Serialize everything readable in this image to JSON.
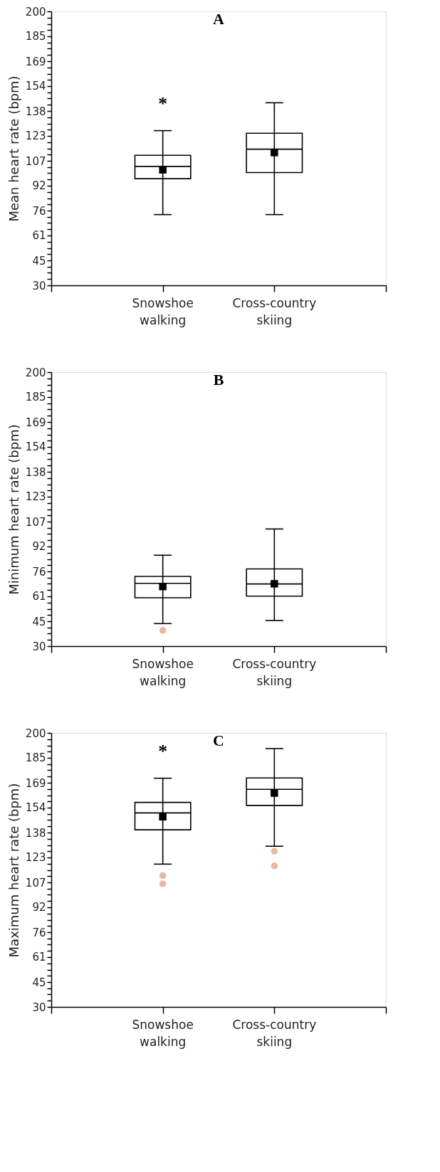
{
  "chart_data": [
    {
      "type": "box",
      "title": "A",
      "ylabel": "Mean heart rate (bpm)",
      "categories": [
        "Snowshoe walking",
        "Cross-country skiing"
      ],
      "series": [
        {
          "color": "#000000",
          "boxes": [
            {
              "low": 73.9,
              "q1": 96.2,
              "median": 103.8,
              "q3": 110.7,
              "high": 126,
              "mean": 101.7
            },
            {
              "low": 73.9,
              "q1": 100,
              "median": 114.5,
              "q3": 124.4,
              "high": 143.3,
              "mean": 112.4
            }
          ]
        }
      ],
      "ylim": [
        30,
        200
      ],
      "yticks": [
        30,
        {
          "value": 33.86,
          "label": null
        },
        {
          "value": 37.73,
          "label": null
        },
        {
          "value": 41.59,
          "label": null
        },
        {
          "value": 45.45,
          "label": "45"
        },
        {
          "value": 49.32,
          "label": null
        },
        {
          "value": 53.18,
          "label": null
        },
        {
          "value": 57.05,
          "label": null
        },
        {
          "value": 60.91,
          "label": "61"
        },
        {
          "value": 64.77,
          "label": null
        },
        {
          "value": 68.64,
          "label": null
        },
        {
          "value": 72.5,
          "label": null
        },
        {
          "value": 76.36,
          "label": "76"
        },
        {
          "value": 80.23,
          "label": null
        },
        {
          "value": 84.09,
          "label": null
        },
        {
          "value": 87.95,
          "label": null
        },
        {
          "value": 91.82,
          "label": "92"
        },
        {
          "value": 95.68,
          "label": null
        },
        {
          "value": 99.55,
          "label": null
        },
        {
          "value": 103.41,
          "label": null
        },
        {
          "value": 107.27,
          "label": "107"
        },
        {
          "value": 111.14,
          "label": null
        },
        {
          "value": 115,
          "label": null
        },
        {
          "value": 118.86,
          "label": null
        },
        {
          "value": 122.73,
          "label": "123"
        },
        {
          "value": 126.59,
          "label": null
        },
        {
          "value": 130.45,
          "label": null
        },
        {
          "value": 134.32,
          "label": null
        },
        {
          "value": 138.18,
          "label": "138"
        },
        {
          "value": 142.05,
          "label": null
        },
        {
          "value": 145.91,
          "label": null
        },
        {
          "value": 149.77,
          "label": null
        },
        {
          "value": 153.64,
          "label": "154"
        },
        {
          "value": 157.5,
          "label": null
        },
        {
          "value": 161.36,
          "label": null
        },
        {
          "value": 165.23,
          "label": null
        },
        {
          "value": 169.09,
          "label": "169"
        },
        {
          "value": 172.95,
          "label": null
        },
        {
          "value": 176.82,
          "label": null
        },
        {
          "value": 180.68,
          "label": null
        },
        {
          "value": 184.55,
          "label": "185"
        },
        {
          "value": 188.41,
          "label": null
        },
        {
          "value": 192.27,
          "label": null
        },
        {
          "value": 196.14,
          "label": null
        },
        200
      ],
      "annotations": [
        "*"
      ],
      "grid": false
    },
    {
      "type": "box",
      "title": "B",
      "ylabel": "Minimum heart rate (bpm)",
      "categories": [
        "Snowshoe walking",
        "Cross-country skiing"
      ],
      "series": [
        {
          "color": "#000000",
          "boxes": [
            {
              "low": 44,
              "q1": 60,
              "median": 69,
              "q3": 73.3,
              "high": 86.4,
              "mean": 67
            },
            {
              "low": 45.9,
              "q1": 61,
              "median": 68.6,
              "q3": 77.9,
              "high": 102.7,
              "mean": 68.7
            }
          ]
        },
        {
          "type": "scatter",
          "color": "#e0a080",
          "x": [
            "Snowshoe walking"
          ],
          "values": [
            39.8
          ]
        }
      ],
      "ylim": [
        30,
        200
      ],
      "yticks": [
        30,
        {
          "value": 33.86,
          "label": null
        },
        {
          "value": 37.73,
          "label": null
        },
        {
          "value": 41.59,
          "label": null
        },
        {
          "value": 45.45,
          "label": "45"
        },
        {
          "value": 49.32,
          "label": null
        },
        {
          "value": 53.18,
          "label": null
        },
        {
          "value": 57.05,
          "label": null
        },
        {
          "value": 60.91,
          "label": "61"
        },
        {
          "value": 64.77,
          "label": null
        },
        {
          "value": 68.64,
          "label": null
        },
        {
          "value": 72.5,
          "label": null
        },
        {
          "value": 76.36,
          "label": "76"
        },
        {
          "value": 80.23,
          "label": null
        },
        {
          "value": 84.09,
          "label": null
        },
        {
          "value": 87.95,
          "label": null
        },
        {
          "value": 91.82,
          "label": "92"
        },
        {
          "value": 95.68,
          "label": null
        },
        {
          "value": 99.55,
          "label": null
        },
        {
          "value": 103.41,
          "label": null
        },
        {
          "value": 107.27,
          "label": "107"
        },
        {
          "value": 111.14,
          "label": null
        },
        {
          "value": 115,
          "label": null
        },
        {
          "value": 118.86,
          "label": null
        },
        {
          "value": 122.73,
          "label": "123"
        },
        {
          "value": 126.59,
          "label": null
        },
        {
          "value": 130.45,
          "label": null
        },
        {
          "value": 134.32,
          "label": null
        },
        {
          "value": 138.18,
          "label": "138"
        },
        {
          "value": 142.05,
          "label": null
        },
        {
          "value": 145.91,
          "label": null
        },
        {
          "value": 149.77,
          "label": null
        },
        {
          "value": 153.64,
          "label": "154"
        },
        {
          "value": 157.5,
          "label": null
        },
        {
          "value": 161.36,
          "label": null
        },
        {
          "value": 165.23,
          "label": null
        },
        {
          "value": 169.09,
          "label": "169"
        },
        {
          "value": 172.95,
          "label": null
        },
        {
          "value": 176.82,
          "label": null
        },
        {
          "value": 180.68,
          "label": null
        },
        {
          "value": 184.55,
          "label": "185"
        },
        {
          "value": 188.41,
          "label": null
        },
        {
          "value": 192.27,
          "label": null
        },
        {
          "value": 196.14,
          "label": null
        },
        200
      ],
      "grid": false
    },
    {
      "type": "box",
      "title": "C",
      "ylabel": "Maximum heart rate (bpm)",
      "categories": [
        "Snowshoe walking",
        "Cross-country skiing"
      ],
      "series": [
        {
          "color": "#000000",
          "boxes": [
            {
              "low": 118.6,
              "q1": 139.9,
              "median": 150.4,
              "q3": 156.9,
              "high": 171.9,
              "mean": 148
            },
            {
              "low": 129.7,
              "q1": 155,
              "median": 165,
              "q3": 172.1,
              "high": 190.3,
              "mean": 162.7
            }
          ]
        },
        {
          "type": "scatter",
          "color": "#e0a080",
          "x": [
            "Snowshoe walking",
            "Snowshoe walking",
            "Cross-country skiing",
            "Cross-country skiing"
          ],
          "values": [
            111.5,
            106.4,
            126.6,
            117.5
          ]
        }
      ],
      "ylim": [
        30,
        200
      ],
      "yticks": [
        30,
        {
          "value": 33.86,
          "label": null
        },
        {
          "value": 37.73,
          "label": null
        },
        {
          "value": 41.59,
          "label": null
        },
        {
          "value": 45.45,
          "label": "45"
        },
        {
          "value": 49.32,
          "label": null
        },
        {
          "value": 53.18,
          "label": null
        },
        {
          "value": 57.05,
          "label": null
        },
        {
          "value": 60.91,
          "label": "61"
        },
        {
          "value": 64.77,
          "label": null
        },
        {
          "value": 68.64,
          "label": null
        },
        {
          "value": 72.5,
          "label": null
        },
        {
          "value": 76.36,
          "label": "76"
        },
        {
          "value": 80.23,
          "label": null
        },
        {
          "value": 84.09,
          "label": null
        },
        {
          "value": 87.95,
          "label": null
        },
        {
          "value": 91.82,
          "label": "92"
        },
        {
          "value": 95.68,
          "label": null
        },
        {
          "value": 99.55,
          "label": null
        },
        {
          "value": 103.41,
          "label": null
        },
        {
          "value": 107.27,
          "label": "107"
        },
        {
          "value": 111.14,
          "label": null
        },
        {
          "value": 115,
          "label": null
        },
        {
          "value": 118.86,
          "label": null
        },
        {
          "value": 122.73,
          "label": "123"
        },
        {
          "value": 126.59,
          "label": null
        },
        {
          "value": 130.45,
          "label": null
        },
        {
          "value": 134.32,
          "label": null
        },
        {
          "value": 138.18,
          "label": "138"
        },
        {
          "value": 142.05,
          "label": null
        },
        {
          "value": 145.91,
          "label": null
        },
        {
          "value": 149.77,
          "label": null
        },
        {
          "value": 153.64,
          "label": "154"
        },
        {
          "value": 157.5,
          "label": null
        },
        {
          "value": 161.36,
          "label": null
        },
        {
          "value": 165.23,
          "label": null
        },
        {
          "value": 169.09,
          "label": "169"
        },
        {
          "value": 172.95,
          "label": null
        },
        {
          "value": 176.82,
          "label": null
        },
        {
          "value": 180.68,
          "label": null
        },
        {
          "value": 184.55,
          "label": "185"
        },
        {
          "value": 188.41,
          "label": null
        },
        {
          "value": 192.27,
          "label": null
        },
        {
          "value": 196.14,
          "label": null
        },
        200
      ],
      "annotations": [
        "*"
      ],
      "grid": false
    }
  ]
}
